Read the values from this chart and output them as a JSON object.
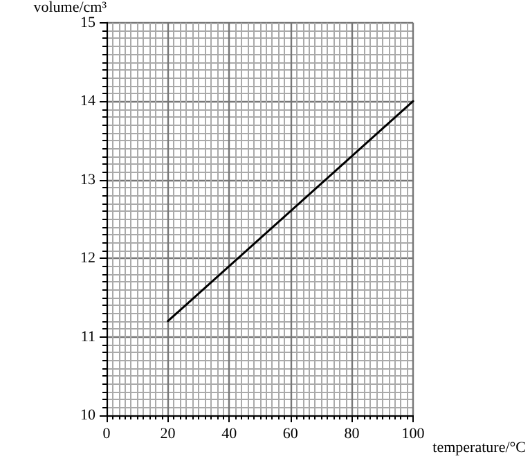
{
  "chart_data": {
    "type": "line",
    "xlabel": "temperature/°C",
    "ylabel": "volume/cm³",
    "x": [
      20,
      100
    ],
    "series": [
      {
        "color": "#000000",
        "values": [
          11.2,
          14.0
        ]
      }
    ],
    "xlim": [
      0,
      100
    ],
    "xticks": [
      0,
      20,
      40,
      60,
      80,
      100
    ],
    "ylim": [
      10,
      15
    ],
    "yticks": [
      10,
      11,
      12,
      13,
      14,
      15
    ],
    "grid": true,
    "marker": "none",
    "line_style": "solid"
  }
}
